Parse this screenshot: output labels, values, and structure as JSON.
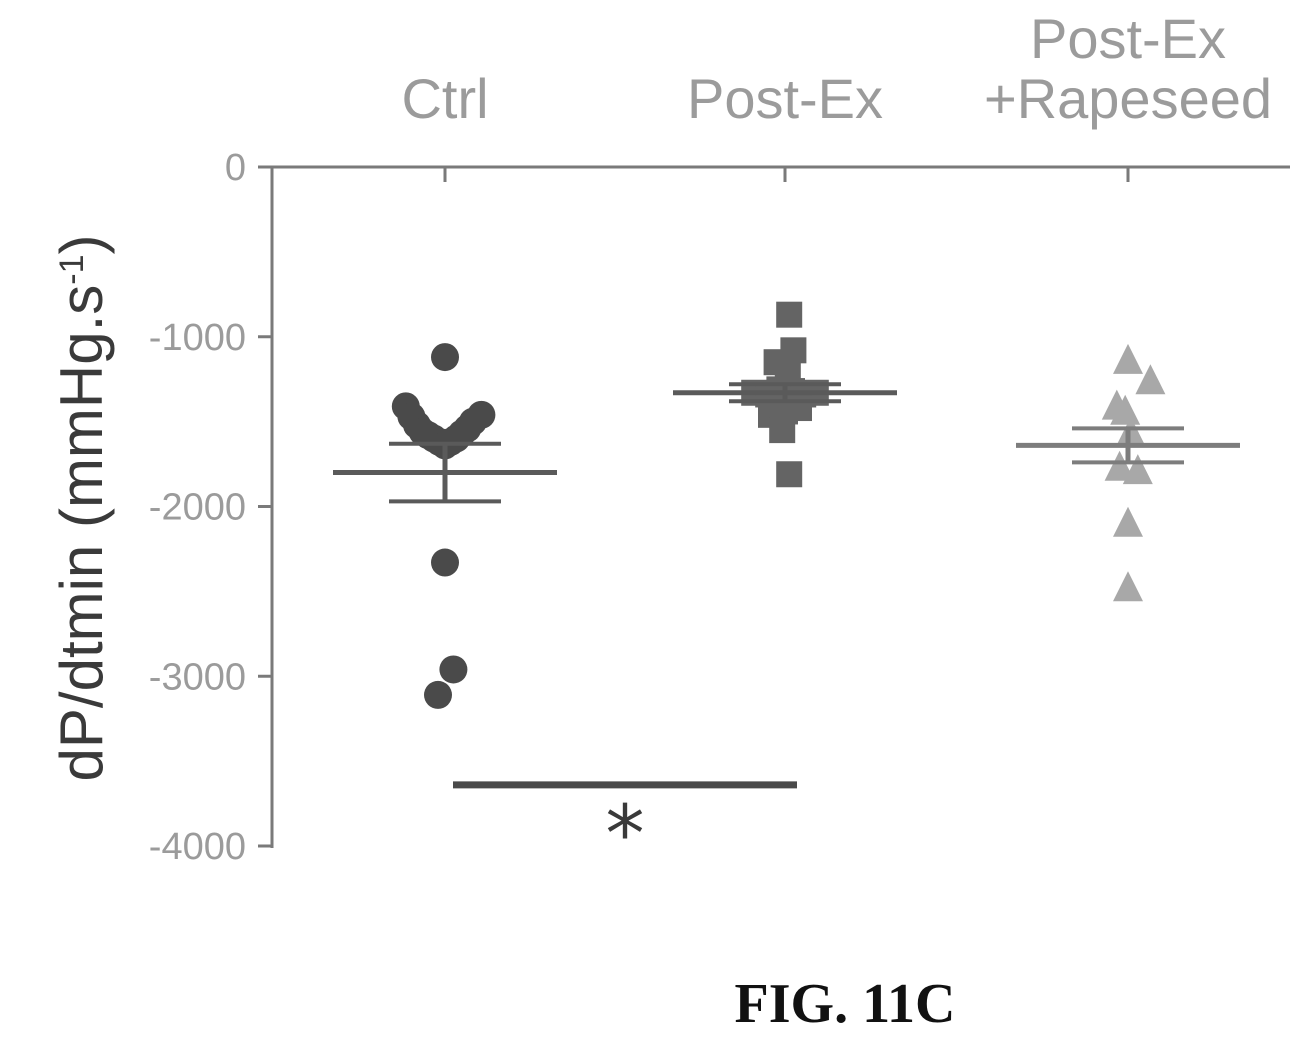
{
  "figure_label": "FIG. 11C",
  "colors": {
    "ctrl": "#4a4a4a",
    "post_ex": "#646464",
    "post_ex_rapeseed": "#a8a8a8",
    "axis": "#7a7a7a",
    "bracket": "#4a4a4a"
  },
  "chart_data": {
    "type": "scatter",
    "title": "",
    "xlabel": "",
    "ylabel": "dP/dtmin (mmHg.s",
    "ylabel_superscript": "-1",
    "ylabel_close": ")",
    "ylim": [
      -4000,
      0
    ],
    "yticks": [
      0,
      -1000,
      -2000,
      -3000,
      -4000
    ],
    "ytick_labels": [
      "0",
      "-1000",
      "-2000",
      "-3000",
      "-4000"
    ],
    "grid": false,
    "legend": "none",
    "categories": [
      "Ctrl",
      "Post-Ex",
      "Post-Ex +Rapeseed"
    ],
    "category_label_lines": [
      [
        "Ctrl"
      ],
      [
        "Post-Ex"
      ],
      [
        "Post-Ex",
        "+Rapeseed"
      ]
    ],
    "series": [
      {
        "category": "Ctrl",
        "marker": "circle",
        "points": [
          {
            "dx": 0.0,
            "y": -1120
          },
          {
            "dx": -0.28,
            "y": -1410
          },
          {
            "dx": -0.24,
            "y": -1470
          },
          {
            "dx": -0.2,
            "y": -1520
          },
          {
            "dx": -0.16,
            "y": -1560
          },
          {
            "dx": -0.12,
            "y": -1580
          },
          {
            "dx": -0.08,
            "y": -1600
          },
          {
            "dx": -0.04,
            "y": -1620
          },
          {
            "dx": 0.0,
            "y": -1640
          },
          {
            "dx": 0.04,
            "y": -1620
          },
          {
            "dx": 0.08,
            "y": -1600
          },
          {
            "dx": 0.12,
            "y": -1570
          },
          {
            "dx": 0.16,
            "y": -1540
          },
          {
            "dx": 0.2,
            "y": -1500
          },
          {
            "dx": 0.26,
            "y": -1460
          },
          {
            "dx": 0.0,
            "y": -2330
          },
          {
            "dx": 0.06,
            "y": -2960
          },
          {
            "dx": -0.05,
            "y": -3110
          }
        ],
        "mean": -1800,
        "sem": 170
      },
      {
        "category": "Post-Ex",
        "marker": "square",
        "points": [
          {
            "dx": 0.03,
            "y": -870
          },
          {
            "dx": 0.06,
            "y": -1080
          },
          {
            "dx": -0.06,
            "y": -1150
          },
          {
            "dx": 0.02,
            "y": -1230
          },
          {
            "dx": -0.22,
            "y": -1330
          },
          {
            "dx": -0.12,
            "y": -1340
          },
          {
            "dx": -0.04,
            "y": -1310
          },
          {
            "dx": 0.05,
            "y": -1320
          },
          {
            "dx": 0.13,
            "y": -1340
          },
          {
            "dx": 0.22,
            "y": -1330
          },
          {
            "dx": -0.1,
            "y": -1460
          },
          {
            "dx": 0.0,
            "y": -1440
          },
          {
            "dx": 0.1,
            "y": -1420
          },
          {
            "dx": -0.02,
            "y": -1550
          },
          {
            "dx": 0.03,
            "y": -1810
          }
        ],
        "mean": -1330,
        "sem": 50
      },
      {
        "category": "Post-Ex +Rapeseed",
        "marker": "triangle",
        "points": [
          {
            "dx": 0.0,
            "y": -1130
          },
          {
            "dx": 0.16,
            "y": -1250
          },
          {
            "dx": -0.08,
            "y": -1400
          },
          {
            "dx": -0.02,
            "y": -1430
          },
          {
            "dx": 0.02,
            "y": -1560
          },
          {
            "dx": -0.06,
            "y": -1760
          },
          {
            "dx": 0.07,
            "y": -1780
          },
          {
            "dx": 0.0,
            "y": -2090
          },
          {
            "dx": 0.0,
            "y": -2470
          }
        ],
        "mean": -1640,
        "sem": 100
      }
    ],
    "annotations": [
      {
        "type": "significance",
        "from": "Ctrl",
        "to": "Post-Ex",
        "y": -3640,
        "label": "*"
      }
    ]
  }
}
